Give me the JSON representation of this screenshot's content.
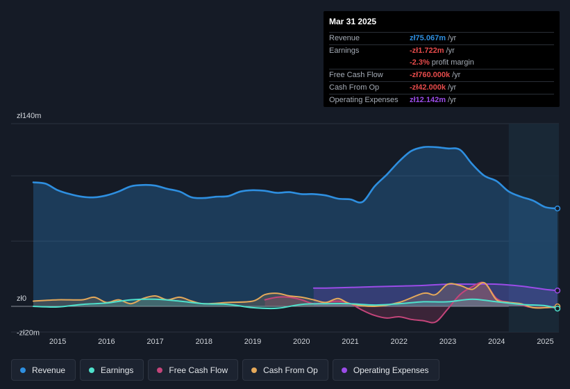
{
  "colors": {
    "revenue": "#2e8fe0",
    "earnings": "#4fe1cc",
    "fcf": "#c4457a",
    "cfo": "#e5a95a",
    "opex": "#9b4ce8"
  },
  "tooltip": {
    "date": "Mar 31 2025",
    "rows": [
      {
        "label": "Revenue",
        "value": "zł75.067m",
        "unit": "/yr",
        "color": "#2e8fe0"
      },
      {
        "label": "Earnings",
        "value": "-zł1.722m",
        "unit": "/yr",
        "color": "#e64b4b"
      },
      {
        "label": "",
        "value": "-2.3%",
        "unit": "profit margin",
        "color": "#e64b4b"
      },
      {
        "label": "Free Cash Flow",
        "value": "-zł760.000k",
        "unit": "/yr",
        "color": "#e64b4b"
      },
      {
        "label": "Cash From Op",
        "value": "-zł42.000k",
        "unit": "/yr",
        "color": "#e64b4b"
      },
      {
        "label": "Operating Expenses",
        "value": "zł12.142m",
        "unit": "/yr",
        "color": "#9b4ce8"
      }
    ]
  },
  "legend": [
    {
      "label": "Revenue",
      "color": "#2e8fe0"
    },
    {
      "label": "Earnings",
      "color": "#4fe1cc"
    },
    {
      "label": "Free Cash Flow",
      "color": "#c4457a"
    },
    {
      "label": "Cash From Op",
      "color": "#e5a95a"
    },
    {
      "label": "Operating Expenses",
      "color": "#9b4ce8"
    }
  ],
  "chart_data": {
    "type": "area",
    "units": "PLN millions",
    "ylim": [
      -20,
      140
    ],
    "ytick_labels": [
      {
        "value": 140,
        "label": "zł140m"
      },
      {
        "value": 0,
        "label": "zł0"
      },
      {
        "value": -20,
        "label": "-zł20m"
      }
    ],
    "xlim": [
      2014.3,
      2025.3
    ],
    "xtick_labels": [
      "2015",
      "2016",
      "2017",
      "2018",
      "2019",
      "2020",
      "2021",
      "2022",
      "2023",
      "2024",
      "2025"
    ],
    "xtick_values": [
      2015,
      2016,
      2017,
      2018,
      2019,
      2020,
      2021,
      2022,
      2023,
      2024,
      2025
    ],
    "highlight_start": 2024.25,
    "series": [
      {
        "name": "Revenue",
        "key": "revenue",
        "x": [
          2014.5,
          2014.75,
          2015.0,
          2015.25,
          2015.5,
          2015.75,
          2016.0,
          2016.25,
          2016.5,
          2016.75,
          2017.0,
          2017.25,
          2017.5,
          2017.75,
          2018.0,
          2018.25,
          2018.5,
          2018.75,
          2019.0,
          2019.25,
          2019.5,
          2019.75,
          2020.0,
          2020.25,
          2020.5,
          2020.75,
          2021.0,
          2021.25,
          2021.5,
          2021.75,
          2022.0,
          2022.25,
          2022.5,
          2022.75,
          2023.0,
          2023.25,
          2023.5,
          2023.75,
          2024.0,
          2024.25,
          2024.5,
          2024.75,
          2025.0,
          2025.25
        ],
        "values": [
          95,
          94,
          89,
          86,
          84,
          83.5,
          85,
          88,
          92,
          93,
          92.5,
          90,
          88,
          83.5,
          83,
          84,
          84.5,
          88,
          89,
          88.5,
          87,
          87.5,
          86,
          86,
          85,
          82.5,
          82,
          80,
          92,
          101,
          111,
          119,
          122,
          122,
          121,
          120,
          109,
          100,
          96,
          88,
          84,
          81,
          76,
          75
        ]
      },
      {
        "name": "Earnings",
        "key": "earnings",
        "x": [
          2014.5,
          2015.0,
          2015.5,
          2016.0,
          2016.5,
          2017.0,
          2017.5,
          2018.0,
          2018.5,
          2019.0,
          2019.5,
          2020.0,
          2020.5,
          2021.0,
          2021.5,
          2022.0,
          2022.5,
          2023.0,
          2023.5,
          2024.0,
          2024.5,
          2025.0,
          2025.25
        ],
        "values": [
          0,
          -0.5,
          1.5,
          2.5,
          5,
          5.5,
          4,
          2,
          1.5,
          -1,
          -1.5,
          1.5,
          2,
          2,
          1,
          2,
          3.5,
          3.5,
          5.5,
          3.5,
          1.5,
          0.5,
          -1.7
        ]
      },
      {
        "name": "Free Cash Flow",
        "key": "fcf",
        "x": [
          2019.25,
          2019.5,
          2019.75,
          2020.0,
          2020.25,
          2020.5,
          2020.75,
          2021.0,
          2021.25,
          2021.5,
          2021.75,
          2022.0,
          2022.25,
          2022.5,
          2022.75,
          2023.0,
          2023.25,
          2023.5,
          2023.75,
          2024.0,
          2024.25,
          2024.5,
          2024.75,
          2025.0,
          2025.25
        ],
        "values": [
          5,
          7,
          7,
          5,
          2,
          3,
          4,
          2,
          -3,
          -7,
          -9,
          -8,
          -10,
          -11,
          -12,
          -2,
          9,
          15,
          18,
          6,
          3,
          1,
          -1,
          -1,
          -0.8
        ]
      },
      {
        "name": "Cash From Op",
        "key": "cfo",
        "x": [
          2014.5,
          2015.0,
          2015.5,
          2015.75,
          2016.0,
          2016.25,
          2016.5,
          2016.75,
          2017.0,
          2017.25,
          2017.5,
          2017.75,
          2018.0,
          2018.5,
          2019.0,
          2019.25,
          2019.5,
          2019.75,
          2020.0,
          2020.25,
          2020.5,
          2020.75,
          2021.0,
          2021.5,
          2022.0,
          2022.5,
          2022.75,
          2023.0,
          2023.25,
          2023.5,
          2023.75,
          2024.0,
          2024.25,
          2024.5,
          2024.75,
          2025.0,
          2025.25
        ],
        "values": [
          4,
          5,
          5,
          7,
          3,
          5,
          2,
          6,
          8,
          5,
          7,
          4,
          2,
          3,
          4,
          9,
          10,
          8,
          7,
          5,
          3,
          6,
          2,
          0,
          3,
          10,
          9,
          17,
          16,
          13,
          18,
          5,
          3,
          2,
          -1,
          -1,
          -0.04
        ]
      },
      {
        "name": "Operating Expenses",
        "key": "opex",
        "x": [
          2020.25,
          2020.5,
          2021.0,
          2021.5,
          2022.0,
          2022.5,
          2023.0,
          2023.5,
          2024.0,
          2024.5,
          2025.0,
          2025.25
        ],
        "values": [
          14,
          14,
          14.5,
          15,
          15.5,
          16,
          17,
          17,
          17,
          15.5,
          13,
          12.1
        ]
      }
    ]
  }
}
